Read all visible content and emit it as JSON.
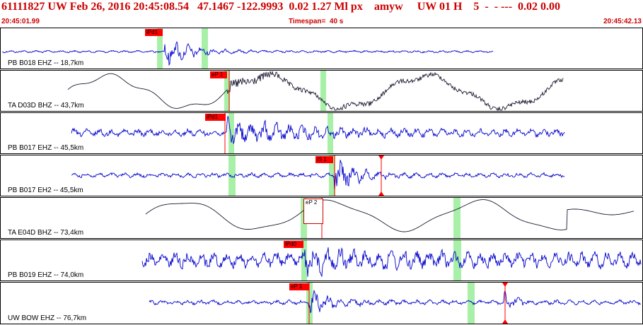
{
  "header": {
    "title": "61111827 UW Feb 26, 2016 20:45:08.54   47.1467 -122.9993  0.02 1.27 Ml px    amyw     UW 01 H    5  -  - ---  0.02 0.00",
    "start_time": "20:45:01.99",
    "timespan": "Timespan=  40 s",
    "end_time": "20:45:42.13"
  },
  "colors": {
    "header_text": "#cc0000",
    "trace_blue": "#0000cc",
    "trace_black": "#1a1a33",
    "pick_red": "#ff0000",
    "window_green": "#a8f0a8"
  },
  "traces": [
    {
      "label": "PB B018 EHZ -- 18,7km",
      "pick_label": "iPd1",
      "pick_style": "red"
    },
    {
      "label": "TA D03D BHZ -- 43,7km",
      "pick_label": "eP 1",
      "pick_style": "red"
    },
    {
      "label": "PB B017 EHZ -- 45,5km",
      "pick_label": "iPd1",
      "pick_style": "red"
    },
    {
      "label": "PB B017 EH2 -- 45,5km",
      "pick_label": "iS 1",
      "pick_style": "red"
    },
    {
      "label": "TA E04D BHZ -- 73,4km",
      "pick_label": "eP 2",
      "pick_style": "hollow"
    },
    {
      "label": "PB B019 EHZ -- 74,0km",
      "pick_label": "iPd0",
      "pick_style": "red"
    },
    {
      "label": "UW BOW EHZ -- 76,7km",
      "pick_label": "eP 1",
      "pick_style": "red"
    }
  ]
}
